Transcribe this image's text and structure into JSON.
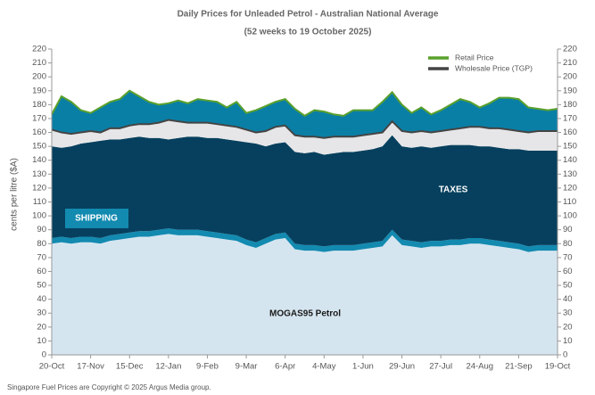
{
  "chart_data": {
    "type": "area",
    "title": "Daily Prices for Unleaded Petrol - Australian National Average",
    "subtitle": "(52 weeks to 19 October 2025)",
    "y_label": "cents per litre ($A)",
    "footnote": "Singapore Fuel Prices are Copyright © 2025 Argus Media group.",
    "categories": [
      "20-Oct",
      null,
      null,
      null,
      "17-Nov",
      null,
      null,
      null,
      "15-Dec",
      null,
      null,
      null,
      "12-Jan",
      null,
      null,
      null,
      "9-Feb",
      null,
      null,
      null,
      "9-Mar",
      null,
      null,
      null,
      "6-Apr",
      null,
      null,
      null,
      "4-May",
      null,
      null,
      null,
      "1-Jun",
      null,
      null,
      null,
      "29-Jun",
      null,
      null,
      null,
      "27-Jul",
      null,
      null,
      null,
      "24-Aug",
      null,
      null,
      null,
      "21-Sep",
      null,
      null,
      null,
      "19-Oct"
    ],
    "ylim": [
      0,
      220
    ],
    "yticks": [
      0,
      10,
      20,
      30,
      40,
      50,
      60,
      70,
      80,
      90,
      100,
      110,
      120,
      130,
      140,
      150,
      160,
      170,
      180,
      190,
      200,
      210,
      220
    ],
    "stacked": true,
    "series": [
      {
        "name": "MOGAS95 Petrol",
        "type": "area",
        "color": "#d5e5f0",
        "label_color": "#1a1a1a",
        "values": [
          80,
          81,
          80,
          81,
          81,
          80,
          82,
          83,
          84,
          85,
          85,
          86,
          87,
          86,
          86,
          86,
          85,
          84,
          83,
          82,
          79,
          77,
          80,
          83,
          84,
          76,
          75,
          75,
          74,
          75,
          75,
          75,
          76,
          77,
          78,
          86,
          79,
          78,
          77,
          78,
          78,
          79,
          79,
          80,
          80,
          79,
          78,
          77,
          76,
          74,
          75,
          75,
          75
        ]
      },
      {
        "name": "SHIPPING",
        "type": "area",
        "color": "#138ab0",
        "label_color": "#ffffff",
        "values": [
          4,
          4,
          4,
          4,
          4,
          4,
          4,
          4,
          4,
          4,
          4,
          4,
          4,
          4,
          4,
          4,
          4,
          4,
          4,
          4,
          4,
          4,
          4,
          4,
          4,
          4,
          4,
          4,
          4,
          4,
          4,
          4,
          4,
          4,
          4,
          4,
          4,
          4,
          4,
          4,
          4,
          4,
          4,
          4,
          4,
          4,
          4,
          4,
          4,
          4,
          4,
          4,
          4
        ]
      },
      {
        "name": "TAXES",
        "type": "area",
        "color": "#06405e",
        "label_color": "#ffffff",
        "values": [
          66,
          64,
          66,
          67,
          68,
          70,
          69,
          68,
          68,
          68,
          67,
          66,
          64,
          66,
          67,
          67,
          67,
          68,
          68,
          68,
          70,
          71,
          66,
          65,
          65,
          66,
          66,
          67,
          66,
          66,
          67,
          67,
          67,
          67,
          68,
          68,
          67,
          67,
          69,
          67,
          68,
          68,
          68,
          67,
          66,
          67,
          67,
          67,
          68,
          69,
          68,
          68,
          68
        ]
      },
      {
        "name": "Wholesale Price (TGP)",
        "type": "line",
        "color": "#444444",
        "fill": "#e6e6e8",
        "values": [
          162,
          160,
          159,
          160,
          161,
          160,
          163,
          163,
          165,
          166,
          166,
          167,
          169,
          168,
          167,
          167,
          167,
          166,
          165,
          164,
          162,
          160,
          161,
          164,
          165,
          158,
          157,
          157,
          156,
          157,
          157,
          157,
          158,
          159,
          160,
          168,
          161,
          160,
          161,
          160,
          161,
          162,
          163,
          164,
          164,
          163,
          163,
          162,
          161,
          160,
          161,
          161,
          161
        ]
      },
      {
        "name": "Retail Price",
        "type": "line",
        "color": "#5aa02c",
        "fill": "#0a7fa6",
        "values": [
          173,
          186,
          182,
          176,
          174,
          178,
          182,
          184,
          190,
          186,
          182,
          180,
          181,
          183,
          181,
          184,
          183,
          182,
          178,
          182,
          174,
          176,
          179,
          182,
          184,
          177,
          172,
          176,
          175,
          173,
          172,
          176,
          176,
          176,
          182,
          189,
          180,
          174,
          178,
          173,
          176,
          180,
          184,
          182,
          178,
          181,
          185,
          185,
          184,
          178,
          177,
          176,
          177
        ]
      }
    ]
  }
}
